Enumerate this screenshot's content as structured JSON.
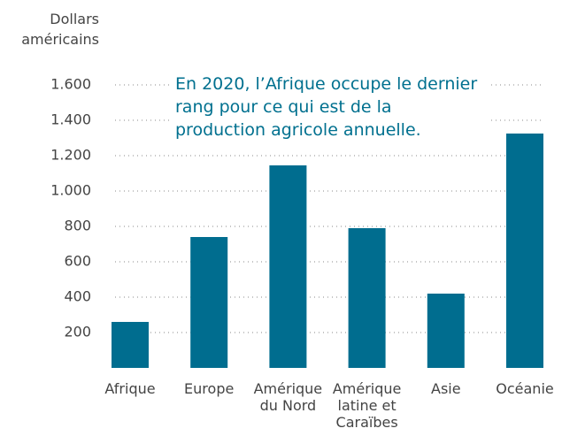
{
  "chart_data": {
    "type": "bar",
    "y_axis_label": "Dollars\naméricains",
    "annotation": "En 2020, l’Afrique occupe le dernier rang pour ce qui est de la production agricole annuelle.",
    "categories": [
      "Afrique",
      "Europe",
      "Amérique\ndu Nord",
      "Amérique\nlatine et\nCaraïbes",
      "Asie",
      "Océanie"
    ],
    "values": [
      260,
      740,
      1145,
      790,
      420,
      1325
    ],
    "color": "#006d8f",
    "ylim": [
      0,
      1600
    ],
    "yticks": [
      {
        "value": 200,
        "label": "200"
      },
      {
        "value": 400,
        "label": "400"
      },
      {
        "value": 600,
        "label": "600"
      },
      {
        "value": 800,
        "label": "800"
      },
      {
        "value": 1000,
        "label": "1.000"
      },
      {
        "value": 1200,
        "label": "1.200"
      },
      {
        "value": 1400,
        "label": "1.400"
      },
      {
        "value": 1600,
        "label": "1.600"
      }
    ],
    "grid": true
  }
}
